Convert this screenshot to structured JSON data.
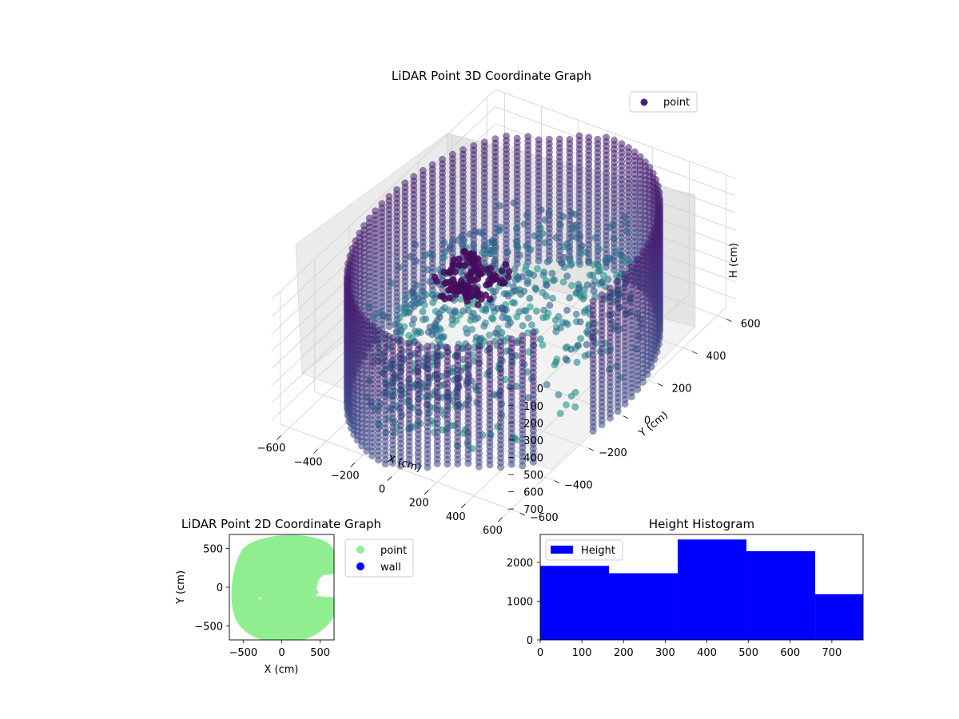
{
  "chart_data": [
    {
      "type": "scatter3d",
      "title": "LiDAR Point 3D Coordinate Graph",
      "xlabel": "X (cm)",
      "ylabel": "Y (cm)",
      "zlabel": "H (cm)",
      "xlim": [
        -650,
        650
      ],
      "ylim": [
        -650,
        650
      ],
      "zlim": [
        0,
        770
      ],
      "z_inverted": true,
      "xticks": [
        "−600",
        "−400",
        "−200",
        "0",
        "200",
        "400",
        "600"
      ],
      "yticks": [
        "−600",
        "−400",
        "−200",
        "0",
        "200",
        "400",
        "600"
      ],
      "zticks": [
        "0",
        "100",
        "200",
        "300",
        "400",
        "500",
        "600",
        "700"
      ],
      "legend": [
        {
          "name": "point",
          "color": "#46237a"
        }
      ],
      "legend_position": "top-right",
      "colormap": "viridis",
      "series": [
        {
          "name": "point",
          "description_wall": {
            "radius": 620,
            "h_range": [
              0,
              770
            ]
          },
          "description_floor": {
            "h_range": [
              300,
              700
            ]
          },
          "description_object": {
            "center": [
              -100,
              -100
            ],
            "h_range": [
              150,
              250
            ]
          }
        }
      ],
      "grid": true
    },
    {
      "type": "scatter",
      "title": "LiDAR Point 2D Coordinate Graph",
      "xlabel": "X (cm)",
      "ylabel": "Y (cm)",
      "xlim": [
        -680,
        680
      ],
      "ylim": [
        -680,
        680
      ],
      "xticks": [
        "−500",
        "0",
        "500"
      ],
      "yticks": [
        "−500",
        "0",
        "500"
      ],
      "legend": [
        {
          "name": "point",
          "color": "#90ee90"
        },
        {
          "name": "wall",
          "color": "#0000ff"
        }
      ],
      "legend_position": "outside-right",
      "series": [
        {
          "name": "point",
          "color": "#90ee90",
          "disc_radius": 650,
          "center": [
            50,
            0
          ]
        },
        {
          "name": "wall",
          "color": "#0000ff",
          "values": []
        }
      ]
    },
    {
      "type": "bar",
      "title": "Height Histogram",
      "xlim": [
        0,
        775
      ],
      "ylim": [
        0,
        2720
      ],
      "xticks": [
        0,
        100,
        200,
        300,
        400,
        500,
        600,
        700
      ],
      "yticks": [
        0,
        1000,
        2000
      ],
      "bins": [
        {
          "x0": 0,
          "x1": 165,
          "count": 1910
        },
        {
          "x0": 165,
          "x1": 330,
          "count": 1720
        },
        {
          "x0": 330,
          "x1": 495,
          "count": 2590
        },
        {
          "x0": 495,
          "x1": 660,
          "count": 2290
        },
        {
          "x0": 660,
          "x1": 775,
          "count": 1180
        }
      ],
      "color": "#0000ff",
      "legend": [
        {
          "name": "Height",
          "color": "#0000ff"
        }
      ],
      "legend_position": "top-left"
    }
  ]
}
